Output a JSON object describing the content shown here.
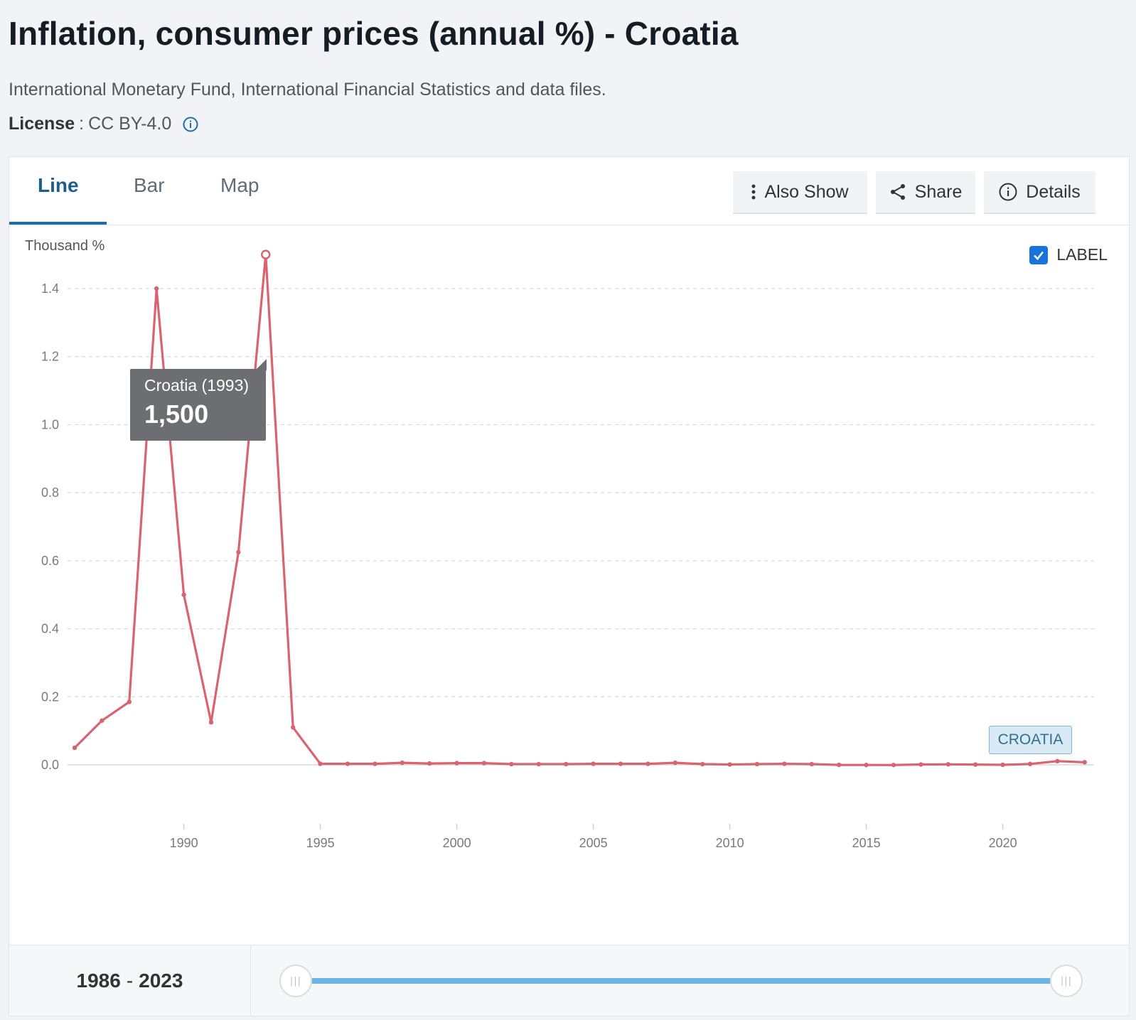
{
  "header": {
    "title": "Inflation, consumer prices (annual %) - Croatia",
    "source": "International Monetary Fund, International Financial Statistics and data files.",
    "license_label": "License",
    "license_sep": ":",
    "license_value": "CC BY-4.0"
  },
  "tabs": [
    {
      "label": "Line",
      "active": true
    },
    {
      "label": "Bar",
      "active": false
    },
    {
      "label": "Map",
      "active": false
    }
  ],
  "toolbar": {
    "also_show": "Also Show",
    "share": "Share",
    "details": "Details"
  },
  "chart": {
    "units": "Thousand %",
    "label_toggle": "LABEL",
    "label_checked": true,
    "series_badge": "CROATIA",
    "tooltip_label": "Croatia (1993)",
    "tooltip_value": "1,500"
  },
  "range": {
    "start": "1986",
    "end": "2023",
    "separator": "-"
  },
  "colors": {
    "series": "#d9646f",
    "accent": "#1b6fa8",
    "slider": "#69b4e3"
  },
  "chart_data": {
    "type": "line",
    "title": "Inflation, consumer prices (annual %) - Croatia",
    "ylabel": "Thousand %",
    "xlabel": "",
    "ylim": [
      0,
      1.5
    ],
    "xlim": [
      1986,
      2023
    ],
    "yticks": [
      "0.0",
      "0.2",
      "0.4",
      "0.6",
      "0.8",
      "1.0",
      "1.2",
      "1.4"
    ],
    "xticks": [
      "1990",
      "1995",
      "2000",
      "2005",
      "2010",
      "2015",
      "2020"
    ],
    "grid": true,
    "series": [
      {
        "name": "CROATIA",
        "x": [
          1986,
          1987,
          1988,
          1989,
          1990,
          1991,
          1992,
          1993,
          1994,
          1995,
          1996,
          1997,
          1998,
          1999,
          2000,
          2001,
          2002,
          2003,
          2004,
          2005,
          2006,
          2007,
          2008,
          2009,
          2010,
          2011,
          2012,
          2013,
          2014,
          2015,
          2016,
          2017,
          2018,
          2019,
          2020,
          2021,
          2022,
          2023
        ],
        "values": [
          0.05,
          0.13,
          0.185,
          1.4,
          0.5,
          0.125,
          0.625,
          1.5,
          0.11,
          0.003,
          0.003,
          0.003,
          0.006,
          0.004,
          0.005,
          0.005,
          0.002,
          0.002,
          0.002,
          0.003,
          0.003,
          0.003,
          0.006,
          0.002,
          0.001,
          0.002,
          0.003,
          0.002,
          -0.0002,
          -0.0005,
          -0.0006,
          0.001,
          0.0015,
          0.0008,
          0.0001,
          0.0026,
          0.0108,
          0.0076
        ]
      }
    ]
  }
}
